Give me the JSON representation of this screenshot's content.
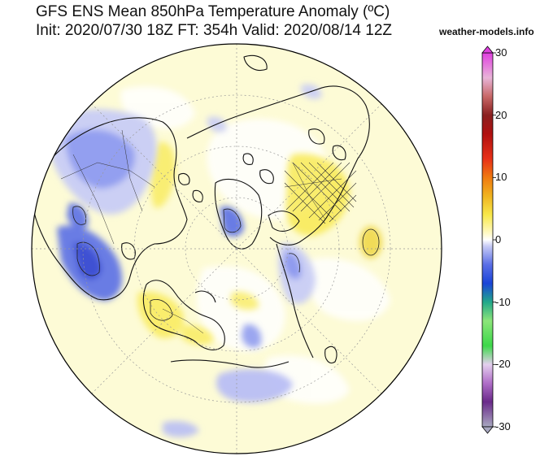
{
  "header": {
    "title": "GFS ENS Mean 850hPa Temperature Anomaly (ºC)",
    "subtitle": "Init: 2020/07/30 18Z FT: 354h Valid: 2020/08/14 12Z",
    "credit": "weather-models.info"
  },
  "map": {
    "projection": "north-polar-stereographic",
    "variable": "850hPa temperature anomaly"
  },
  "colorbar": {
    "min": -30,
    "max": 30,
    "unit": "ºC",
    "tick_labels": [
      "30",
      "20",
      "10",
      "0",
      "-10",
      "-20",
      "-30"
    ],
    "tick_values": [
      30,
      20,
      10,
      0,
      -10,
      -20,
      -30
    ],
    "stops": [
      {
        "value": -30,
        "color": "#a8a8c0"
      },
      {
        "value": -26,
        "color": "#6a2a8a"
      },
      {
        "value": -23,
        "color": "#b06ec8"
      },
      {
        "value": -20,
        "color": "#e4d0ee"
      },
      {
        "value": -17,
        "color": "#3cd84a"
      },
      {
        "value": -13,
        "color": "#8ce57a"
      },
      {
        "value": -10,
        "color": "#22a88a"
      },
      {
        "value": -7,
        "color": "#1a44d8"
      },
      {
        "value": -4,
        "color": "#5a6ee6"
      },
      {
        "value": -1,
        "color": "#c8ccf6"
      },
      {
        "value": 0,
        "color": "#ffffff"
      },
      {
        "value": 1,
        "color": "#fffac8"
      },
      {
        "value": 4,
        "color": "#f8e84a"
      },
      {
        "value": 7,
        "color": "#f0b420"
      },
      {
        "value": 10,
        "color": "#f07a10"
      },
      {
        "value": 13,
        "color": "#e83018"
      },
      {
        "value": 17,
        "color": "#b01010"
      },
      {
        "value": 20,
        "color": "#8a2020"
      },
      {
        "value": 23,
        "color": "#c86868"
      },
      {
        "value": 26,
        "color": "#e8b4d8"
      },
      {
        "value": 30,
        "color": "#e040e0"
      }
    ]
  }
}
